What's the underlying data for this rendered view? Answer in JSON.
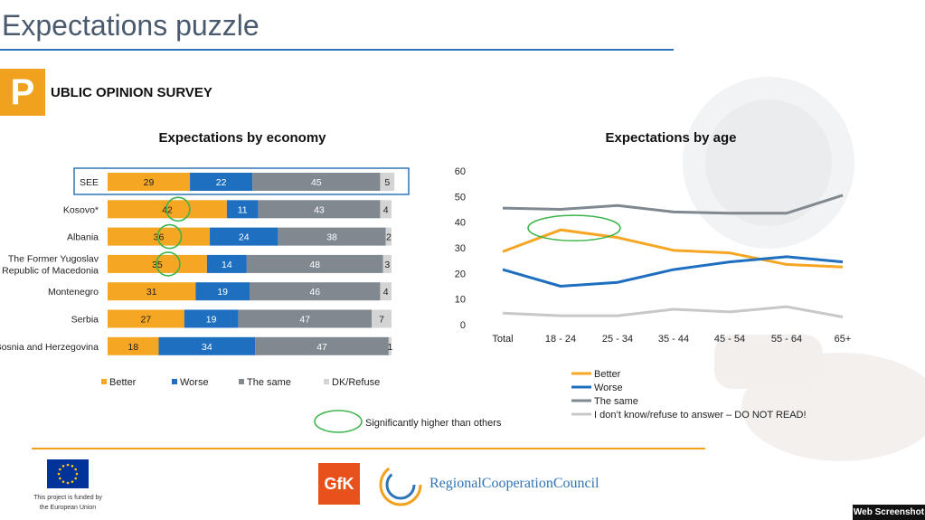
{
  "header": {
    "title": "Expectations puzzle",
    "badge_letter": "P",
    "survey_label": "UBLIC OPINION SURVEY"
  },
  "colors": {
    "better": "#f5a623",
    "worse": "#1f6fc0",
    "same": "#808890",
    "dk": "#d4d4d4",
    "highlight": "#3cb44b",
    "accent_blue": "#2e75b6",
    "accent_orange": "#f0a21e"
  },
  "chart_data": [
    {
      "type": "bar",
      "orientation": "horizontal",
      "stacked": true,
      "title": "Expectations by economy",
      "categories": [
        "SEE",
        "Kosovo*",
        "Albania",
        "The Former Yugoslav Republic of Macedonia",
        "Montenegro",
        "Serbia",
        "Bosnia and Herzegovina"
      ],
      "category_labels": [
        [
          "SEE"
        ],
        [
          "Kosovo*"
        ],
        [
          "Albania"
        ],
        [
          "The Former Yugoslav",
          "Republic of Macedonia"
        ],
        [
          "Montenegro"
        ],
        [
          "Serbia"
        ],
        [
          "Bosnia and Herzegovina"
        ]
      ],
      "series": [
        {
          "name": "Better",
          "values": [
            29,
            42,
            36,
            35,
            31,
            27,
            18
          ]
        },
        {
          "name": "Worse",
          "values": [
            22,
            11,
            24,
            14,
            19,
            19,
            34
          ]
        },
        {
          "name": "The same",
          "values": [
            45,
            43,
            38,
            48,
            46,
            47,
            47
          ]
        },
        {
          "name": "DK/Refuse",
          "values": [
            5,
            4,
            2,
            3,
            4,
            7,
            1
          ]
        }
      ],
      "highlighted_values": [
        {
          "category": "Kosovo*",
          "series": "Better"
        },
        {
          "category": "Albania",
          "series": "Better"
        },
        {
          "category": "The Former Yugoslav Republic of Macedonia",
          "series": "Better"
        }
      ],
      "boxed_category": "SEE",
      "legend": [
        "Better",
        "Worse",
        "The same",
        "DK/Refuse"
      ],
      "legend_position": "bottom",
      "highlight_note": "Significantly higher than others"
    },
    {
      "type": "line",
      "title": "Expectations by age",
      "x": [
        "Total",
        "18 - 24",
        "25 - 34",
        "35 - 44",
        "45 - 54",
        "55 - 64",
        "65+"
      ],
      "series": [
        {
          "name": "Better",
          "values": [
            28.5,
            37,
            34,
            29,
            28,
            23.5,
            22.5
          ]
        },
        {
          "name": "Worse",
          "values": [
            21.5,
            15,
            16.5,
            21.5,
            24.5,
            26.5,
            24.5
          ]
        },
        {
          "name": "The same",
          "values": [
            45.5,
            45,
            46.5,
            44,
            43.5,
            43.5,
            50.5
          ]
        },
        {
          "name": "I don’t know/refuse to answer – DO NOT READ!",
          "values": [
            4.5,
            3.5,
            3.5,
            6,
            5,
            7,
            3
          ]
        }
      ],
      "ylim": [
        0,
        60
      ],
      "yticks": [
        0,
        10,
        20,
        30,
        40,
        50,
        60
      ],
      "grid": false,
      "highlighted_point": {
        "x": "18 - 24",
        "series": "Better"
      },
      "legend_position": "bottom-right"
    }
  ],
  "footer": {
    "eu_text_1": "This project is funded by",
    "eu_text_2": "the European Union",
    "gfk_label": "GfK",
    "rcc_name": "RegionalCooperationCouncil",
    "watermark": "Web Screenshot"
  }
}
